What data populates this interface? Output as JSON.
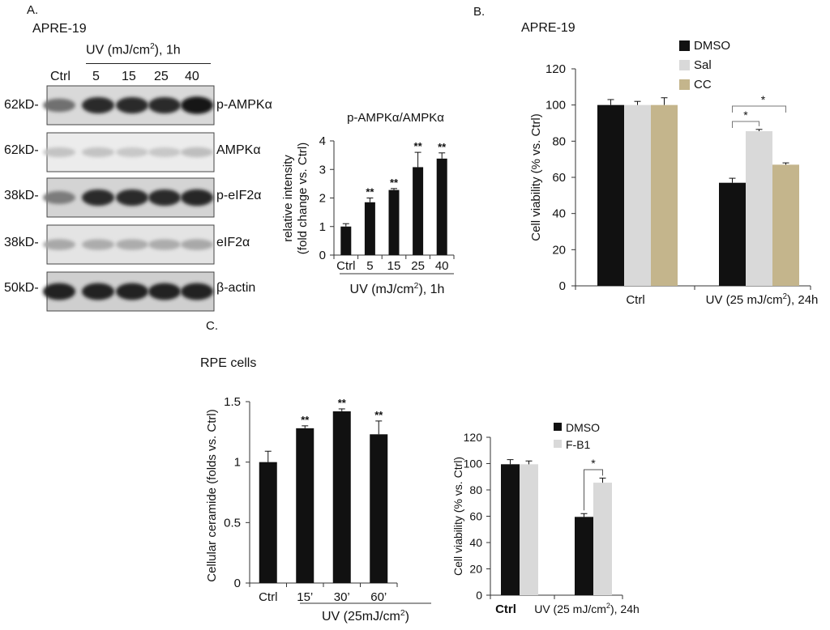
{
  "panelA": {
    "letter": "A.",
    "cell_line": "APRE-19",
    "uv_header": "UV (mJ/cm",
    "uv_sup": "2",
    "uv_suffix": "), 1h",
    "lanes": [
      "Ctrl",
      "5",
      "15",
      "25",
      "40"
    ],
    "blots": [
      {
        "mw": "62kD-",
        "label": "p-AMPKα",
        "intensities": [
          0.55,
          0.85,
          0.85,
          0.85,
          0.95
        ]
      },
      {
        "mw": "62kD-",
        "label": "AMPKα",
        "intensities": [
          0.18,
          0.18,
          0.16,
          0.16,
          0.2
        ]
      },
      {
        "mw": "38kD-",
        "label": "p-eIF2α",
        "intensities": [
          0.5,
          0.85,
          0.85,
          0.85,
          0.88
        ]
      },
      {
        "mw": "38kD-",
        "label": "eIF2α",
        "intensities": [
          0.3,
          0.28,
          0.28,
          0.28,
          0.3
        ]
      },
      {
        "mw": "50kD-",
        "label": "β-actin",
        "intensities": [
          0.9,
          0.9,
          0.9,
          0.9,
          0.9
        ]
      }
    ]
  },
  "panelB": {
    "letter": "B.",
    "title": "APRE-19"
  },
  "panelC": {
    "letter": "C.",
    "title": "RPE cells"
  },
  "chart_data": [
    {
      "type": "bar",
      "id": "ampk_ratio",
      "title": "p-AMPKα/AMPKα",
      "ylabel_line1": "relative intensity",
      "ylabel_line2": "(fold change vs. Ctrl)",
      "xlabel": "UV (mJ/cm",
      "xlabel_sup": "2",
      "xlabel_suffix": "), 1h",
      "categories": [
        "Ctrl",
        "5",
        "15",
        "25",
        "40"
      ],
      "values": [
        1.0,
        1.85,
        2.28,
        3.08,
        3.38
      ],
      "errors": [
        0.1,
        0.15,
        0.05,
        0.52,
        0.2
      ],
      "annotations": [
        "",
        "**",
        "**",
        "**",
        "**"
      ],
      "ylim": [
        0,
        4
      ],
      "yticks": [
        "0",
        "1",
        "2",
        "3",
        "4"
      ],
      "colors": [
        "#111111"
      ]
    },
    {
      "type": "bar",
      "id": "viability_b",
      "ylabel": "Cell viability (% vs. Ctrl)",
      "ylim": [
        0,
        120
      ],
      "yticks": [
        "0",
        "20",
        "40",
        "60",
        "80",
        "100",
        "120"
      ],
      "groups": [
        "Ctrl",
        "UV (25 mJ/cm"
      ],
      "group_sup": "2",
      "group_suffix": "), 24h",
      "series": [
        {
          "name": "DMSO",
          "color": "#111111",
          "values": [
            100,
            57
          ],
          "errors": [
            3,
            2.5
          ]
        },
        {
          "name": "Sal",
          "color": "#d9d9d9",
          "values": [
            100,
            85.5
          ],
          "errors": [
            2,
            1
          ]
        },
        {
          "name": "CC",
          "color": "#c4b58c",
          "values": [
            100,
            67
          ],
          "errors": [
            4,
            1
          ]
        }
      ],
      "significance": [
        "*",
        "*"
      ]
    },
    {
      "type": "bar",
      "id": "ceramide",
      "ylabel": "Cellular ceramide (folds vs. Ctrl)",
      "xlabel": "UV (25mJ/cm",
      "xlabel_sup": "2",
      "xlabel_suffix": ")",
      "categories": [
        "Ctrl",
        "15’",
        "30’",
        "60’"
      ],
      "values": [
        1.0,
        1.28,
        1.42,
        1.23
      ],
      "errors": [
        0.09,
        0.02,
        0.02,
        0.11
      ],
      "annotations": [
        "",
        "**",
        "**",
        "**"
      ],
      "ylim": [
        0,
        1.5
      ],
      "yticks": [
        "0",
        "0.5",
        "1",
        "1.5"
      ],
      "colors": [
        "#111111"
      ]
    },
    {
      "type": "bar",
      "id": "viability_c",
      "ylabel": "Cell viability (% vs. Ctrl)",
      "ylim": [
        0,
        120
      ],
      "yticks": [
        "0",
        "20",
        "40",
        "60",
        "80",
        "100",
        "120"
      ],
      "groups": [
        "Ctrl",
        "UV (25 mJ/cm"
      ],
      "group_sup": "2",
      "group_suffix": "), 24h",
      "series": [
        {
          "name": "DMSO",
          "color": "#111111",
          "values": [
            99.5,
            59.5
          ],
          "errors": [
            3.5,
            2.5
          ]
        },
        {
          "name": "F-B1",
          "color": "#d9d9d9",
          "values": [
            99.5,
            85.5
          ],
          "errors": [
            2.5,
            3.5
          ]
        }
      ],
      "significance": [
        "*"
      ]
    }
  ]
}
